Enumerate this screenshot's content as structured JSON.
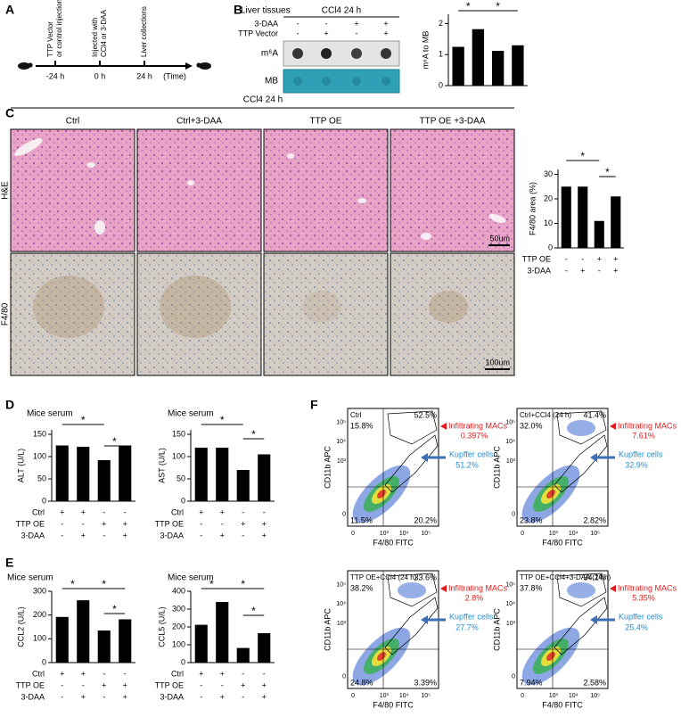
{
  "panels": [
    "A",
    "B",
    "C",
    "D",
    "E",
    "F"
  ],
  "timeline": {
    "events": [
      {
        "lines": [
          "TTP Vector",
          "or control injection"
        ],
        "time": "-24 h"
      },
      {
        "lines": [
          "Injected with",
          "CCl4 or 3-DAA"
        ],
        "time": "0 h"
      },
      {
        "lines": [
          "Liver collections"
        ],
        "time": "24 h"
      }
    ],
    "axis_label": "(Time)"
  },
  "blot": {
    "title": "Liver tissues",
    "condition": "CCl4 24 h",
    "rows": [
      {
        "name": "3-DAA",
        "signs": [
          "-",
          "-",
          "+",
          "+"
        ]
      },
      {
        "name": "TTP Vector",
        "signs": [
          "-",
          "+",
          "-",
          "+"
        ]
      }
    ],
    "bands": [
      "m⁶A",
      "MB"
    ]
  },
  "histology": {
    "condition": "CCl4 24 h",
    "columns": [
      "Ctrl",
      "Ctrl+3-DAA",
      "TTP OE",
      "TTP OE +3-DAA"
    ],
    "rows": [
      "H&E",
      "F4/80"
    ],
    "scale_bars": [
      "50um",
      "100um"
    ]
  },
  "chart_data": [
    {
      "type": "bar",
      "ylabel": "m⁶A to MB",
      "values": [
        1.25,
        1.82,
        1.12,
        1.3
      ],
      "color": "#000000",
      "ylim": [
        0,
        2.3
      ],
      "yticks": [
        0,
        1,
        2
      ],
      "significance": [
        "*",
        "*"
      ]
    },
    {
      "type": "bar",
      "ylabel": "F4/80 area (%)",
      "values": [
        25,
        25,
        11,
        21
      ],
      "color": "#000000",
      "ylim": [
        0,
        32
      ],
      "yticks": [
        0,
        10,
        20,
        30
      ],
      "conditions": [
        {
          "name": "TTP OE",
          "signs": [
            "-",
            "-",
            "+",
            "+"
          ]
        },
        {
          "name": "3-DAA",
          "signs": [
            "-",
            "+",
            "-",
            "+"
          ]
        }
      ],
      "significance": [
        "*",
        "*"
      ]
    },
    {
      "type": "bar",
      "title": "Mice serum",
      "ylabel": "ALT (U/L)",
      "values": [
        125,
        122,
        92,
        125
      ],
      "color": "#000000",
      "ylim": [
        0,
        160
      ],
      "yticks": [
        0,
        50,
        100,
        150
      ],
      "conditions": [
        {
          "name": "Ctrl",
          "signs": [
            "+",
            "+",
            "-",
            "-"
          ]
        },
        {
          "name": "TTP OE",
          "signs": [
            "-",
            "-",
            "+",
            "+"
          ]
        },
        {
          "name": "3-DAA",
          "signs": [
            "-",
            "+",
            "-",
            "+"
          ]
        }
      ],
      "significance": [
        "*",
        "*"
      ]
    },
    {
      "type": "bar",
      "title": "Mice serum",
      "ylabel": "AST (U/L)",
      "values": [
        120,
        120,
        70,
        105
      ],
      "color": "#000000",
      "ylim": [
        0,
        160
      ],
      "yticks": [
        0,
        50,
        100,
        150
      ],
      "conditions": [
        {
          "name": "Ctrl",
          "signs": [
            "+",
            "+",
            "-",
            "-"
          ]
        },
        {
          "name": "TTP OE",
          "signs": [
            "-",
            "-",
            "+",
            "+"
          ]
        },
        {
          "name": "3-DAA",
          "signs": [
            "-",
            "+",
            "-",
            "+"
          ]
        }
      ],
      "significance": [
        "*",
        "*"
      ]
    },
    {
      "type": "bar",
      "title": "Mice serum",
      "ylabel": "CCL2 (U/L)",
      "values": [
        192,
        262,
        135,
        182
      ],
      "color": "#000000",
      "ylim": [
        0,
        300
      ],
      "yticks": [
        0,
        100,
        200,
        300
      ],
      "conditions": [
        {
          "name": "Ctrl",
          "signs": [
            "+",
            "+",
            "-",
            "-"
          ]
        },
        {
          "name": "TTP OE",
          "signs": [
            "-",
            "-",
            "+",
            "+"
          ]
        },
        {
          "name": "3-DAA",
          "signs": [
            "-",
            "+",
            "-",
            "+"
          ]
        }
      ],
      "significance": [
        "*",
        "*",
        "*"
      ]
    },
    {
      "type": "bar",
      "title": "Mice serum",
      "ylabel": "CCL5 (U/L)",
      "values": [
        212,
        340,
        82,
        165
      ],
      "color": "#000000",
      "ylim": [
        0,
        400
      ],
      "yticks": [
        0,
        100,
        200,
        300,
        400
      ],
      "conditions": [
        {
          "name": "Ctrl",
          "signs": [
            "+",
            "+",
            "-",
            "-"
          ]
        },
        {
          "name": "TTP OE",
          "signs": [
            "-",
            "-",
            "+",
            "+"
          ]
        },
        {
          "name": "3-DAA",
          "signs": [
            "-",
            "+",
            "-",
            "+"
          ]
        }
      ],
      "significance": [
        "*",
        "*",
        "*"
      ]
    }
  ],
  "flow": {
    "xlabel": "F4/80 FITC",
    "ylabel": "CD11b APC",
    "xticks": [
      "0",
      "10³",
      "10⁴",
      "10⁵"
    ],
    "yticks": [
      "0",
      "10³",
      "10⁴",
      "10⁵"
    ],
    "macs_label": "Infiltrating MACs",
    "kupffer_label": "Kupffer cells",
    "plots": [
      {
        "title": "Ctrl",
        "quadrants": [
          "15.8%",
          "52.5%",
          "11.5%",
          "20.2%"
        ],
        "macs": "0.397%",
        "kupffer": "51.2%"
      },
      {
        "title": "Ctrl+CCl4 (24 h)",
        "quadrants": [
          "32.0%",
          "41.4%",
          "23.8%",
          "2.82%"
        ],
        "macs": "7.61%",
        "kupffer": "32.9%"
      },
      {
        "title": "TTP OE+CCl4 (24 h)",
        "quadrants": [
          "38.2%",
          "33.6%",
          "24.8%",
          "3.39%"
        ],
        "macs": "2.8%",
        "kupffer": "27.7%"
      },
      {
        "title": "TTP OE+CCl4+3-DAA (24 h)",
        "quadrants": [
          "37.8%",
          "34.1%",
          "7.94%",
          "2.58%"
        ],
        "macs": "5.35%",
        "kupffer": "25.4%"
      }
    ]
  }
}
